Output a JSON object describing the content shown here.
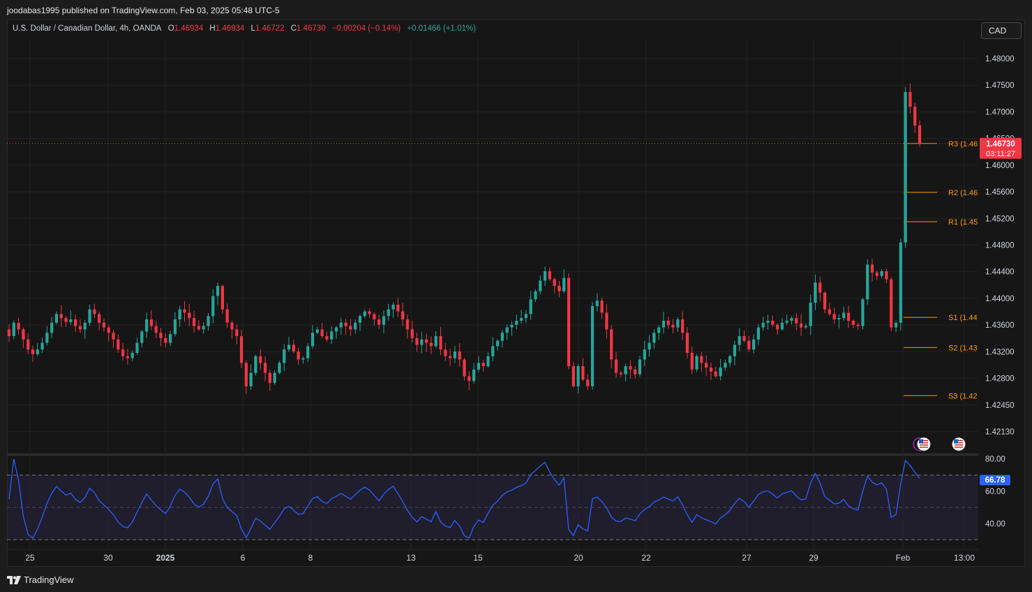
{
  "header": {
    "publish_line": "joodabas1995 published on TradingView.com, Feb 03, 2025 05:48 UTC-5"
  },
  "legend": {
    "symbol": "U.S. Dollar / Canadian Dollar, 4h, OANDA",
    "o_label": "O",
    "o_value": "1.46934",
    "h_label": "H",
    "h_value": "1.46934",
    "l_label": "L",
    "l_value": "1.46722",
    "c_label": "C",
    "c_value": "1.46730",
    "change": "−0.00204 (−0.14%)",
    "change2": "+0.01466 (+1.01%)"
  },
  "currency_button": "CAD",
  "footer": {
    "brand": "TradingView"
  },
  "colors": {
    "up": "#26a69a",
    "down": "#f23645",
    "pivot": "#ff9800",
    "rsi": "#2962ff",
    "rsi_band": "#2a2540",
    "price_badge": "#f23645",
    "rsi_badge": "#2962ff"
  },
  "chart_data": [
    {
      "type": "candlestick",
      "title": "U.S. Dollar / Canadian Dollar, 4h, OANDA",
      "y_ticks": [
        "1.48000",
        "1.47500",
        "1.47000",
        "1.46500",
        "1.46000",
        "1.45600",
        "1.45200",
        "1.44800",
        "1.44400",
        "1.44000",
        "1.43600",
        "1.43200",
        "1.42800",
        "1.42450",
        "1.42130"
      ],
      "x_ticks": [
        "25",
        "30",
        "2025",
        "6",
        "8",
        "13",
        "15",
        "20",
        "22",
        "27",
        "29",
        "Feb",
        "13:00"
      ],
      "ylim": [
        1.4213,
        1.48
      ],
      "last_price": "1.46730",
      "countdown": "03:11:27",
      "pivots": [
        {
          "label": "R3 (1.46",
          "value": 1.4673
        },
        {
          "label": "R2 (1.46",
          "value": 1.46
        },
        {
          "label": "R1 (1.45",
          "value": 1.4556
        },
        {
          "label": "S1 (1.44",
          "value": 1.4413
        },
        {
          "label": "S2 (1.43",
          "value": 1.4368
        },
        {
          "label": "S3 (1.42",
          "value": 1.4296
        }
      ],
      "closes": [
        1.4385,
        1.4405,
        1.4395,
        1.438,
        1.4365,
        1.4358,
        1.4365,
        1.4375,
        1.439,
        1.4405,
        1.4418,
        1.4412,
        1.4406,
        1.441,
        1.44,
        1.4395,
        1.4405,
        1.4425,
        1.4418,
        1.4405,
        1.4398,
        1.439,
        1.438,
        1.4365,
        1.4355,
        1.4352,
        1.436,
        1.4375,
        1.4392,
        1.441,
        1.44,
        1.439,
        1.4382,
        1.4375,
        1.4388,
        1.441,
        1.4425,
        1.442,
        1.4412,
        1.44,
        1.4395,
        1.44,
        1.4415,
        1.4445,
        1.446,
        1.4425,
        1.4405,
        1.4395,
        1.4385,
        1.4345,
        1.431,
        1.433,
        1.4355,
        1.4345,
        1.433,
        1.4315,
        1.433,
        1.4345,
        1.4365,
        1.4372,
        1.4362,
        1.435,
        1.4352,
        1.437,
        1.439,
        1.4395,
        1.4385,
        1.438,
        1.4392,
        1.4398,
        1.4405,
        1.44,
        1.4395,
        1.4405,
        1.4415,
        1.4422,
        1.4418,
        1.441,
        1.4402,
        1.4415,
        1.4425,
        1.4432,
        1.4422,
        1.441,
        1.4395,
        1.4382,
        1.4372,
        1.438,
        1.4375,
        1.437,
        1.4385,
        1.4365,
        1.4355,
        1.4352,
        1.4362,
        1.435,
        1.4325,
        1.4318,
        1.4335,
        1.4345,
        1.434,
        1.4355,
        1.437,
        1.4378,
        1.439,
        1.4398,
        1.4402,
        1.4408,
        1.4412,
        1.4418,
        1.444,
        1.4452,
        1.4468,
        1.4482,
        1.447,
        1.446,
        1.4452,
        1.4472,
        1.434,
        1.431,
        1.434,
        1.432,
        1.431,
        1.443,
        1.4438,
        1.442,
        1.4395,
        1.435,
        1.433,
        1.4328,
        1.434,
        1.4335,
        1.4328,
        1.435,
        1.4365,
        1.4375,
        1.439,
        1.4398,
        1.4408,
        1.4402,
        1.4398,
        1.441,
        1.439,
        1.436,
        1.4335,
        1.4355,
        1.4345,
        1.4338,
        1.4332,
        1.4325,
        1.4338,
        1.4345,
        1.4355,
        1.4372,
        1.4385,
        1.4378,
        1.4365,
        1.438,
        1.4398,
        1.4405,
        1.4408,
        1.4402,
        1.4395,
        1.4405,
        1.4408,
        1.4412,
        1.4404,
        1.4398,
        1.44,
        1.4435,
        1.4465,
        1.445,
        1.4425,
        1.4418,
        1.441,
        1.4412,
        1.442,
        1.4408,
        1.4402,
        1.44,
        1.444,
        1.4492,
        1.448,
        1.4475,
        1.4482,
        1.447,
        1.4398,
        1.4405,
        1.4525,
        1.475,
        1.4728,
        1.47,
        1.4673
      ]
    },
    {
      "type": "line",
      "title": "RSI",
      "y_ticks": [
        "80.00",
        "60.00",
        "40.00"
      ],
      "ylim": [
        30,
        80
      ],
      "last_value": "66.78",
      "bands": [
        70,
        30
      ],
      "midline": 50
    }
  ]
}
